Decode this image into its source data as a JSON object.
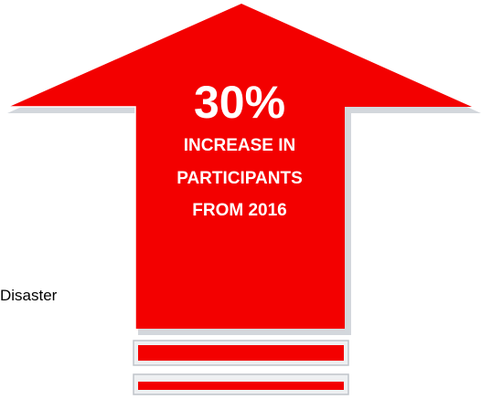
{
  "stat": {
    "value": "30%",
    "line1": "INCREASE IN",
    "line2": "PARTICIPANTS",
    "line3": "FROM 2016"
  },
  "side_text": "Disaster",
  "colors": {
    "arrow_fill": "#f30000",
    "arrow_shadow": "#c7ccd2",
    "bar_outline": "#bfc4ca",
    "text": "#ffffff"
  },
  "icons": {
    "arrow": "up-arrow-icon"
  }
}
